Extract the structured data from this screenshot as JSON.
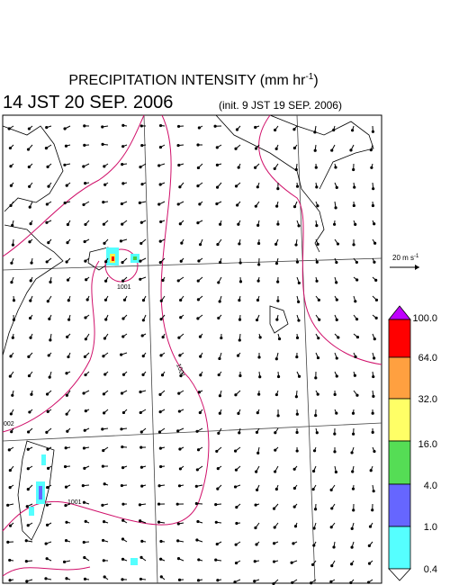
{
  "header": {
    "title": "PRECIPITATION INTENSITY (mm hr",
    "title_exponent": "-1",
    "title_end": ")",
    "valid_time": "14 JST 20 SEP. 2006",
    "init_time": "(init. 9 JST 19 SEP. 2006)"
  },
  "wind_scale": {
    "label": "20 m s",
    "exponent": "-1"
  },
  "colorbar": {
    "labels": [
      "100.0",
      "64.0",
      "32.0",
      "16.0",
      "4.0",
      "1.0",
      "0.4"
    ]
  },
  "isobar_labels": [
    "1001",
    "002",
    "1001",
    "1001"
  ]
}
